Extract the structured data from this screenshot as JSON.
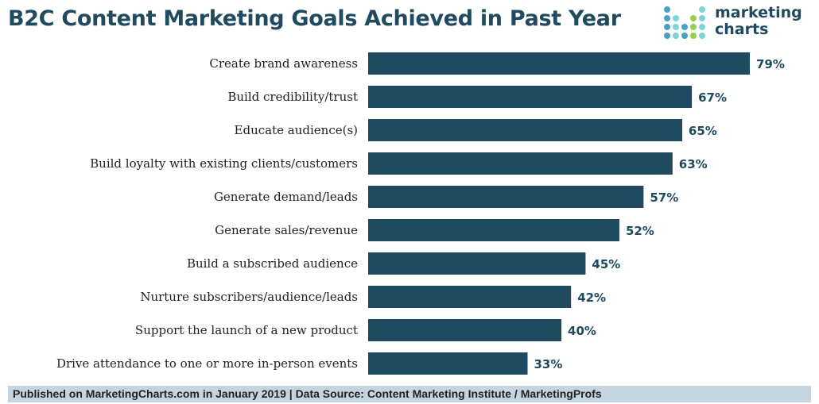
{
  "logo": {
    "line1": "marketing",
    "line2": "charts"
  },
  "footer": "Published on MarketingCharts.com in January 2019 | Data Source: Content Marketing Institute / MarketingProfs",
  "colors": {
    "bar": "#1f4a5f",
    "footer_bg": "#c5d5e0"
  },
  "chart_data": {
    "type": "bar",
    "orientation": "horizontal",
    "title": "B2C Content Marketing Goals Achieved in Past Year",
    "categories": [
      "Create brand awareness",
      "Build credibility/trust",
      "Educate audience(s)",
      "Build loyalty with existing clients/customers",
      "Generate demand/leads",
      "Generate sales/revenue",
      "Build a subscribed audience",
      "Nurture subscribers/audience/leads",
      "Support the launch of a new product",
      "Drive attendance to one or more in-person events"
    ],
    "values": [
      79,
      67,
      65,
      63,
      57,
      52,
      45,
      42,
      40,
      33
    ],
    "value_labels": [
      "79%",
      "67%",
      "65%",
      "63%",
      "57%",
      "52%",
      "45%",
      "42%",
      "40%",
      "33%"
    ],
    "grid": false,
    "legend": "none"
  }
}
